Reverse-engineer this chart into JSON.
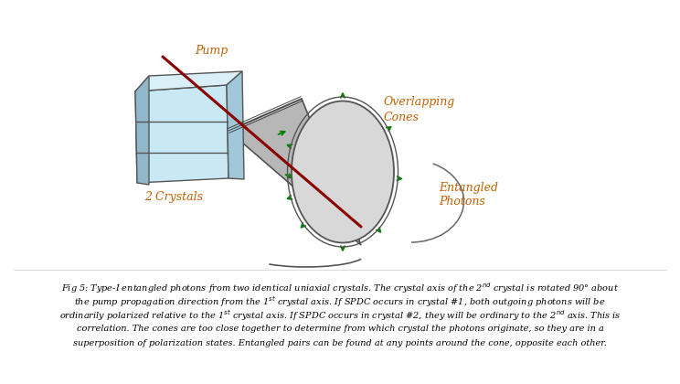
{
  "bg_color": "#ffffff",
  "crystal_color": "#c8e8f4",
  "crystal_top_color": "#daf0f8",
  "crystal_side_color": "#a0c8d8",
  "crystal_edge_color": "#555555",
  "cone_fill_color": "#b0b0b0",
  "cone_edge_color": "#444444",
  "circle_fill_color": "#d8d8d8",
  "circle_edge_color": "#555555",
  "pump_color": "#8b0000",
  "arrow_color": "#008000",
  "label_color": "#2f4f8f",
  "text_color": "#c06000",
  "caption_color": "#000000",
  "label_pump": "Pump",
  "label_crystals": "2 Crystals",
  "label_cones": "Overlapping\nCones",
  "label_photons": "Entangled\nPhotons"
}
